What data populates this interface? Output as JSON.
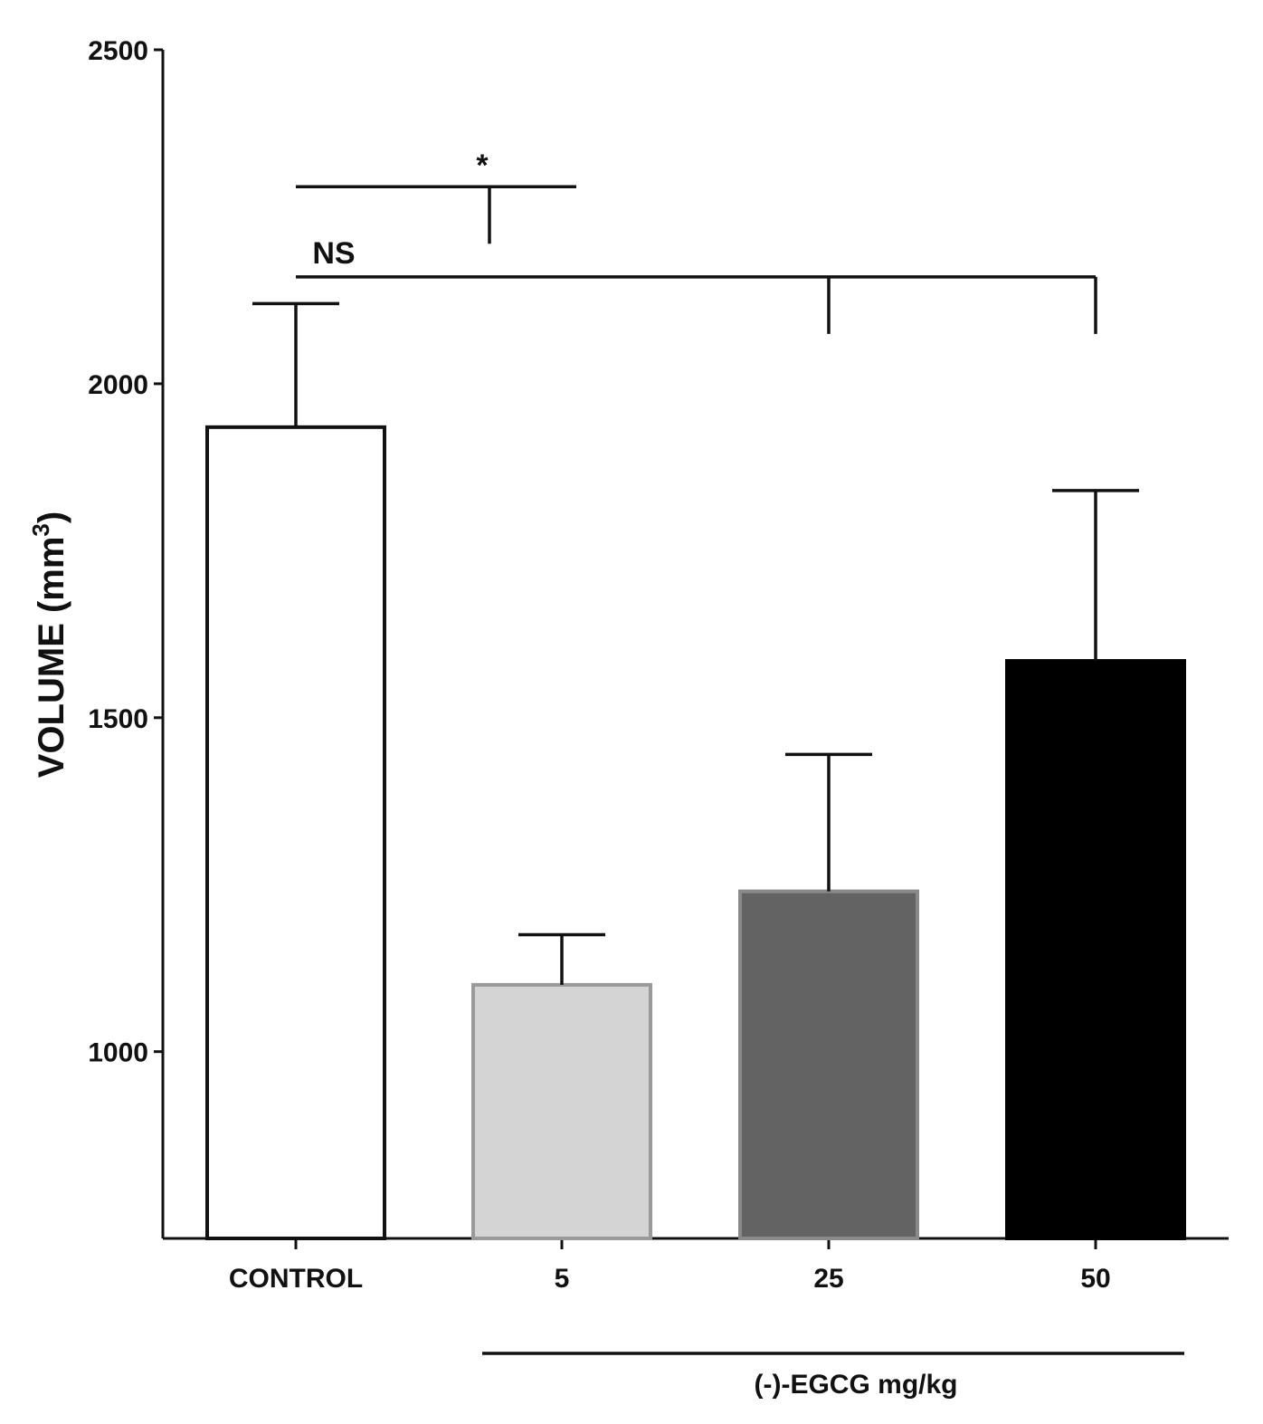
{
  "chart_data": {
    "type": "bar",
    "categories": [
      "CONTROL",
      "5",
      "25",
      "50"
    ],
    "values": [
      1935,
      1100,
      1240,
      1585
    ],
    "errors": [
      185,
      75,
      205,
      255
    ],
    "fill_colors": [
      "#ffffff",
      "#d4d4d4",
      "#636363",
      "#000000"
    ],
    "edge_colors": [
      "#111111",
      "#9a9a9a",
      "#8a8a8a",
      "#000000"
    ],
    "ylabel_main": "VOLUME (mm",
    "ylabel_sup": "3",
    "ylabel_close": ")",
    "ylim": [
      700,
      2500
    ],
    "yticks": [
      1000,
      1500,
      2000,
      2500
    ],
    "grid": false,
    "group_label": "(-)-EGCG  mg/kg",
    "group_categories": [
      "5",
      "25",
      "50"
    ],
    "annotations": [
      {
        "text": "*",
        "from": "CONTROL",
        "to": [
          "5"
        ],
        "level": 2295
      },
      {
        "text": "NS",
        "from": "CONTROL",
        "to": [
          "25",
          "50"
        ],
        "level": 2160
      }
    ]
  }
}
